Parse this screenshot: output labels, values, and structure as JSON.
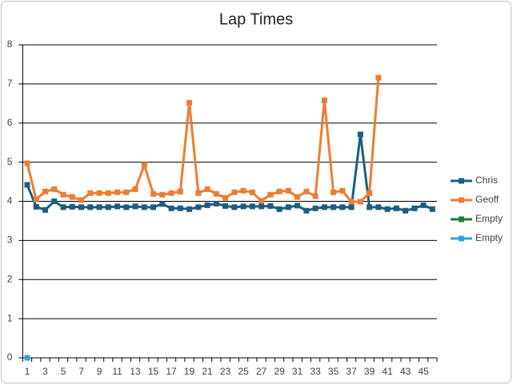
{
  "chart_data": {
    "type": "line",
    "title": "Lap Times",
    "categories": [
      "1",
      null,
      "3",
      null,
      "5",
      null,
      "7",
      null,
      "9",
      null,
      "11",
      null,
      "13",
      null,
      "15",
      null,
      "17",
      null,
      "19",
      null,
      "21",
      null,
      "23",
      null,
      "25",
      null,
      "27",
      null,
      "29",
      null,
      "31",
      null,
      "33",
      null,
      "35",
      null,
      "37",
      null,
      "39",
      null,
      "41",
      null,
      "43",
      null,
      "45",
      null
    ],
    "series": [
      {
        "name": "Chris",
        "color": "#1b5e80",
        "values": [
          4.42,
          3.86,
          3.78,
          4.0,
          3.85,
          3.86,
          3.85,
          3.85,
          3.85,
          3.85,
          3.87,
          3.85,
          3.87,
          3.85,
          3.85,
          3.93,
          3.82,
          3.82,
          3.8,
          3.85,
          3.9,
          3.94,
          3.88,
          3.85,
          3.87,
          3.87,
          3.87,
          3.88,
          3.8,
          3.85,
          3.89,
          3.76,
          3.82,
          3.85,
          3.85,
          3.85,
          3.85,
          5.71,
          3.85,
          3.85,
          3.8,
          3.82,
          3.76,
          3.82,
          3.9,
          3.8
        ]
      },
      {
        "name": "Geoff",
        "color": "#ed7d31",
        "values": [
          4.97,
          4.05,
          4.25,
          4.31,
          4.17,
          4.11,
          4.03,
          4.21,
          4.21,
          4.21,
          4.23,
          4.23,
          4.31,
          4.93,
          4.19,
          4.17,
          4.21,
          4.25,
          6.52,
          4.21,
          4.31,
          4.19,
          4.09,
          4.23,
          4.27,
          4.23,
          4.01,
          4.17,
          4.25,
          4.27,
          4.11,
          4.25,
          4.13,
          6.58,
          4.23,
          4.27,
          3.99,
          3.99,
          4.21,
          7.16,
          null,
          null,
          null,
          null,
          null,
          null
        ]
      },
      {
        "name": "Empty",
        "color": "#1e7b34",
        "values": [
          null,
          null,
          null,
          null,
          null,
          null,
          null,
          null,
          null,
          null,
          null,
          null,
          null,
          null,
          null,
          null,
          null,
          null,
          null,
          null,
          null,
          null,
          null,
          null,
          null,
          null,
          null,
          null,
          null,
          null,
          null,
          null,
          null,
          null,
          null,
          null,
          null,
          null,
          null,
          null,
          null,
          null,
          null,
          null,
          null,
          null
        ]
      },
      {
        "name": "Empty",
        "color": "#2ea3dc",
        "values": [
          0,
          null,
          null,
          null,
          null,
          null,
          null,
          null,
          null,
          null,
          null,
          null,
          null,
          null,
          null,
          null,
          null,
          null,
          null,
          null,
          null,
          null,
          null,
          null,
          null,
          null,
          null,
          null,
          null,
          null,
          null,
          null,
          null,
          null,
          null,
          null,
          null,
          null,
          null,
          null,
          null,
          null,
          null,
          null,
          null,
          null
        ]
      }
    ],
    "ylim": [
      0,
      8
    ],
    "yticks": [
      0,
      1,
      2,
      3,
      4,
      5,
      6,
      7,
      8
    ],
    "grid": true,
    "legend": "right",
    "markers": true
  }
}
